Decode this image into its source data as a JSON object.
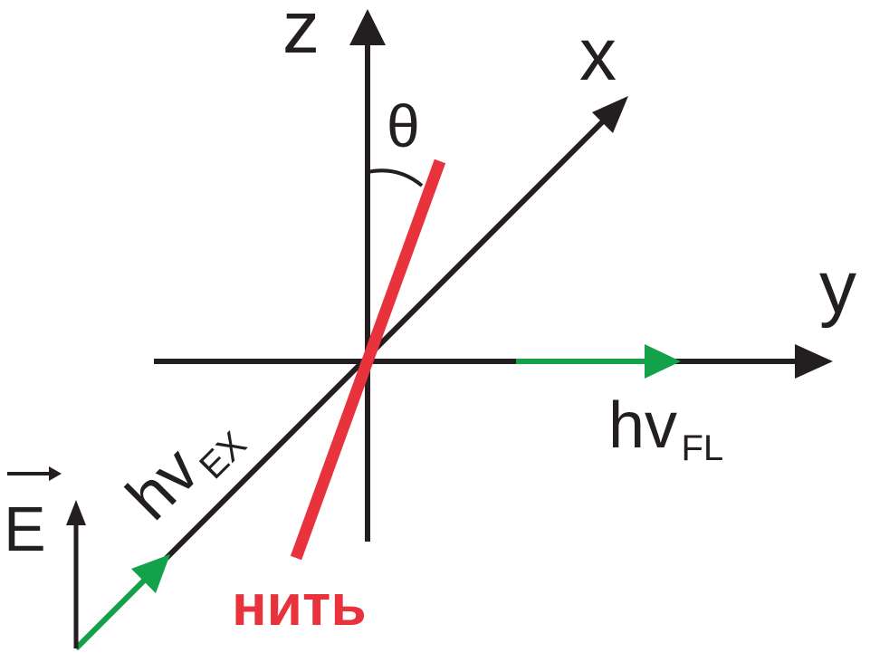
{
  "labels": {
    "z_axis": "z",
    "x_axis": "x",
    "y_axis": "y",
    "angle": "θ",
    "excitation_base": "hv",
    "excitation_sub": "EX",
    "fluorescence_base": "hv",
    "fluorescence_sub": "FL",
    "field_vector": "E",
    "filament": "нить"
  },
  "colors": {
    "axis": "#231f20",
    "filament": "#e8323c",
    "light_arrow": "#13a24a"
  }
}
